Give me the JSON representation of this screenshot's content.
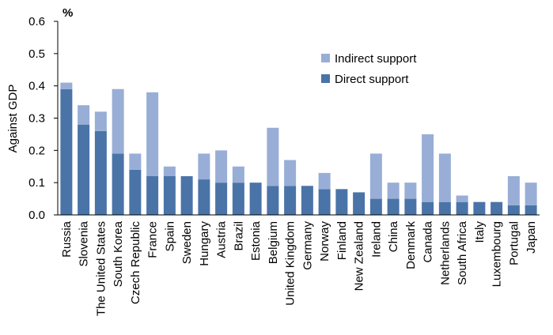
{
  "chart_data": {
    "type": "bar",
    "stacked": true,
    "title": "",
    "unit_label": "%",
    "ylabel": "Against GDP",
    "xlabel": "",
    "ylim": [
      0,
      0.6
    ],
    "yticks": [
      "0.0",
      "0.1",
      "0.2",
      "0.3",
      "0.4",
      "0.5",
      "0.6"
    ],
    "grid": false,
    "legend_position": "top-right",
    "categories": [
      "Russia",
      "Slovenia",
      "The United States",
      "South Korea",
      "Czech Republic",
      "France",
      "Spain",
      "Sweden",
      "Hungary",
      "Austria",
      "Brazil",
      "Estonia",
      "Belgium",
      "United Kingdom",
      "Germany",
      "Norway",
      "Finland",
      "New Zealand",
      "Ireland",
      "China",
      "Denmark",
      "Canada",
      "Netherlands",
      "South Africa",
      "Italy",
      "Luxembourg",
      "Portugal",
      "Japan"
    ],
    "series": [
      {
        "name": "Direct support",
        "color": "#4a74a8",
        "values": [
          0.39,
          0.28,
          0.26,
          0.19,
          0.14,
          0.12,
          0.12,
          0.12,
          0.11,
          0.1,
          0.1,
          0.1,
          0.09,
          0.09,
          0.09,
          0.08,
          0.08,
          0.07,
          0.05,
          0.05,
          0.05,
          0.04,
          0.04,
          0.04,
          0.04,
          0.04,
          0.03,
          0.03
        ]
      },
      {
        "name": "Indirect support",
        "color": "#98aed6",
        "values": [
          0.02,
          0.06,
          0.06,
          0.2,
          0.05,
          0.26,
          0.03,
          0.0,
          0.08,
          0.1,
          0.05,
          0.0,
          0.18,
          0.08,
          0.0,
          0.05,
          0.0,
          0.0,
          0.14,
          0.05,
          0.05,
          0.21,
          0.15,
          0.02,
          0.0,
          0.0,
          0.09,
          0.07
        ]
      }
    ],
    "legend_order": [
      "Indirect support",
      "Direct support"
    ]
  }
}
